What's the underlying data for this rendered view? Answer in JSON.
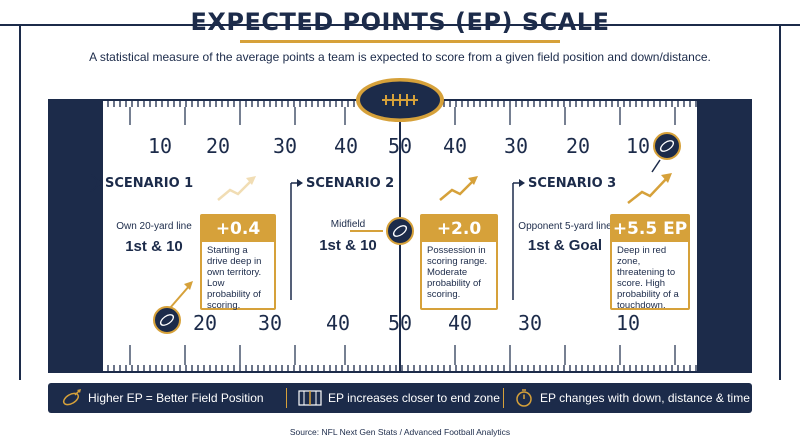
{
  "title": "EXPECTED POINTS (EP) SCALE",
  "subtitle": "A statistical measure of the average points a team is expected to score from a given field position and down/distance.",
  "top_numbers": [
    "10",
    "20",
    "30",
    "40",
    "50",
    "40",
    "30",
    "20",
    "10"
  ],
  "bottom_numbers": [
    "20",
    "30",
    "40",
    "50",
    "40",
    "30",
    "10"
  ],
  "scenarios": [
    {
      "label": "SCENARIO 1",
      "position": "Own 20-yard line",
      "down": "1st & 10",
      "ep": "+0.4 EP",
      "desc": "Starting a drive deep in own territory. Low probability of scoring."
    },
    {
      "label": "SCENARIO 2",
      "position": "Midfield",
      "down": "1st & 10",
      "ep": "+2.0 EP",
      "desc": "Possession in scoring range. Moderate probability of scoring."
    },
    {
      "label": "SCENARIO 3",
      "position": "Opponent 5-yard line",
      "down": "1st & Goal",
      "ep": "+5.5 EP",
      "desc": "Deep in red zone, threatening to score. High probability of a touchdown."
    }
  ],
  "legend": [
    {
      "icon": "football-arrow-icon",
      "text": "Higher EP = Better Field Position"
    },
    {
      "icon": "field-icon",
      "text": "EP increases closer to end zone"
    },
    {
      "icon": "stopwatch-icon",
      "text": "EP changes with down, distance & time"
    }
  ],
  "source": "Source: NFL Next Gen Stats / Advanced Football Analytics",
  "colors": {
    "navy": "#1c2b4a",
    "gold": "#d6a13a"
  }
}
